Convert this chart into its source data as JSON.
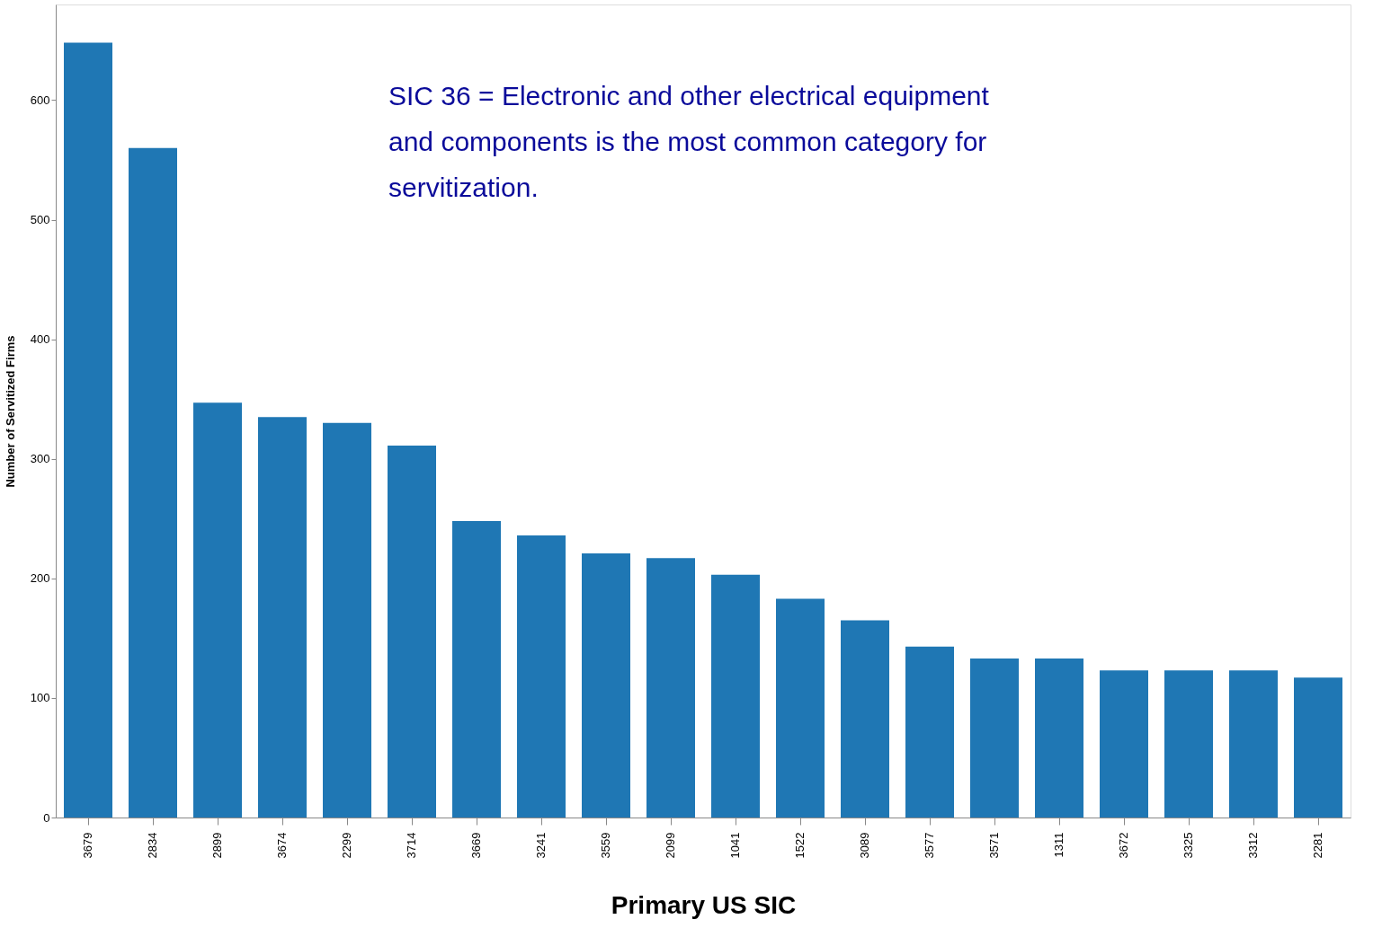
{
  "chart_data": {
    "type": "bar",
    "categories": [
      "3679",
      "2834",
      "2899",
      "3674",
      "2299",
      "3714",
      "3669",
      "3241",
      "3559",
      "2099",
      "1041",
      "1522",
      "3089",
      "3577",
      "3571",
      "1311",
      "3672",
      "3325",
      "3312",
      "2281"
    ],
    "values": [
      648,
      560,
      347,
      335,
      330,
      311,
      248,
      236,
      221,
      217,
      203,
      183,
      165,
      143,
      133,
      133,
      123,
      123,
      123,
      117
    ],
    "color": "#1f77b4",
    "xlabel": "Primary US SIC",
    "ylabel": "Number of Servitized Firms",
    "ylim": [
      0,
      680
    ],
    "yticks": [
      0,
      100,
      200,
      300,
      400,
      500,
      600
    ],
    "grid": false,
    "annotations": [
      "SIC 36 = Electronic and other electrical equipment and components is the most common category for servitization."
    ]
  }
}
